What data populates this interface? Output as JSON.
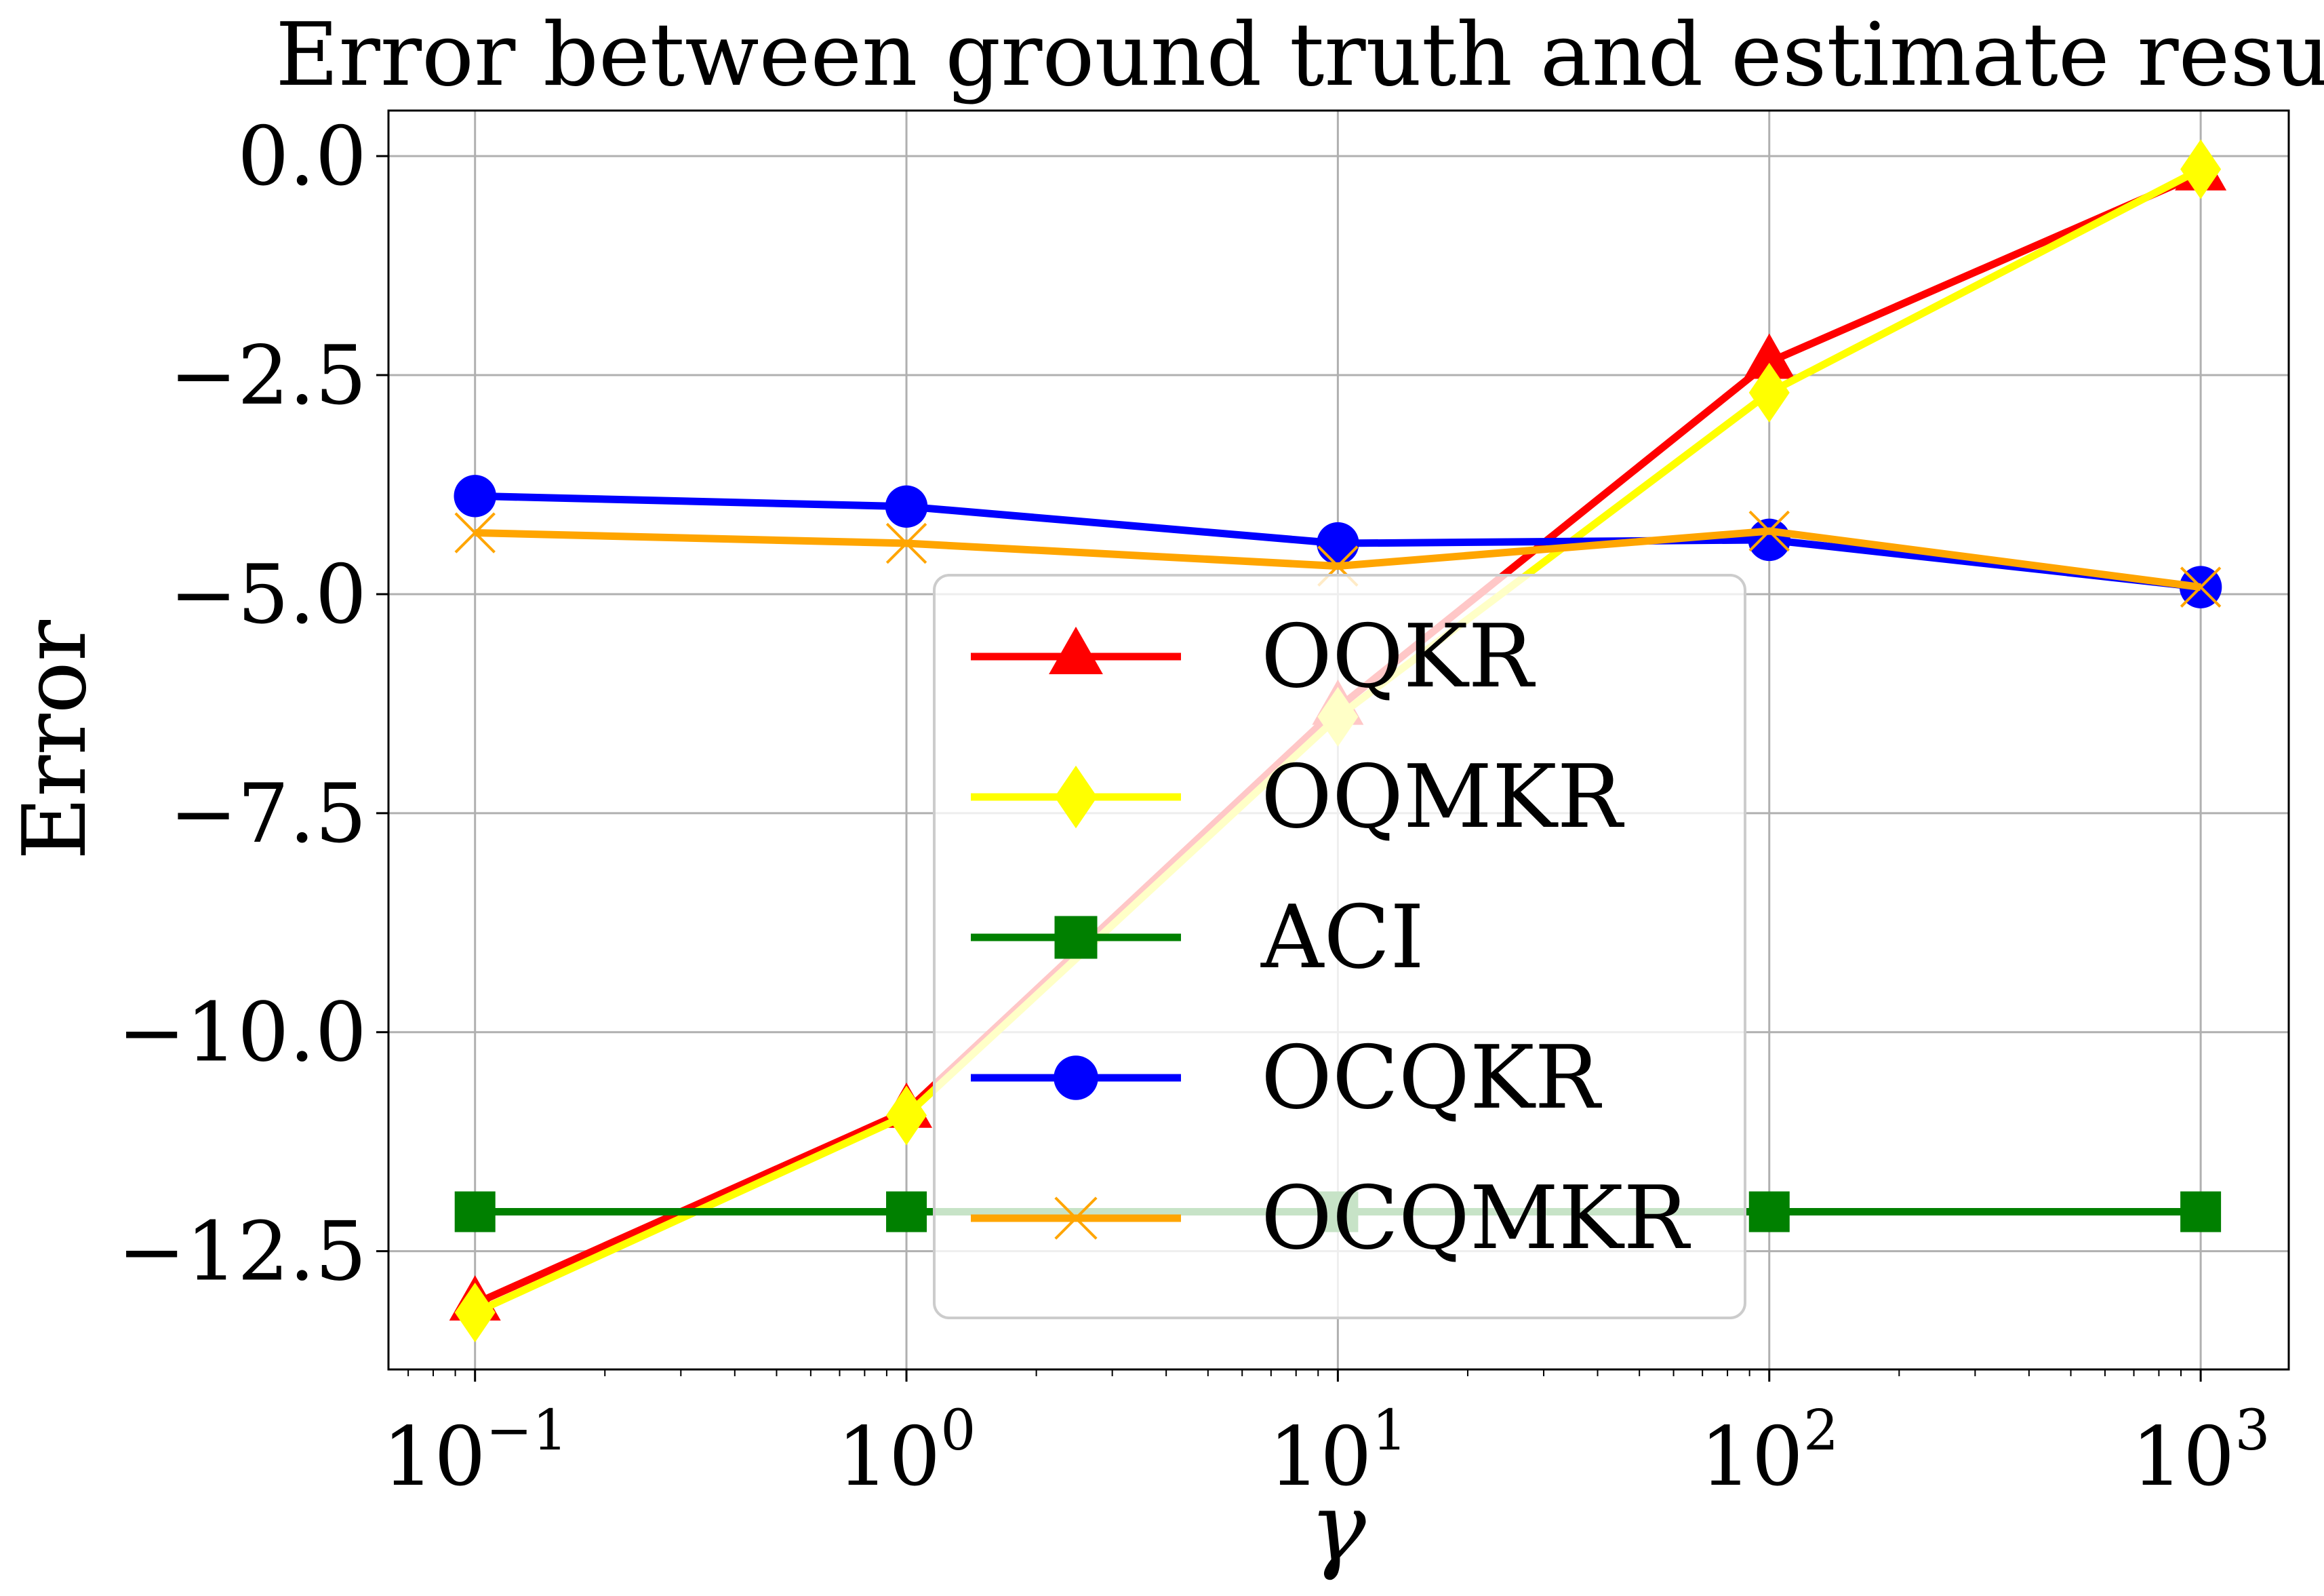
{
  "chart_data": {
    "type": "line",
    "title": "Error between ground truth and estimate result",
    "xlabel": "γ",
    "ylabel": "Error",
    "xscale": "log",
    "x": [
      0.1,
      1,
      10,
      100,
      1000
    ],
    "x_tick_labels": [
      {
        "base": "10",
        "exp": "−1"
      },
      {
        "base": "10",
        "exp": "0"
      },
      {
        "base": "10",
        "exp": "1"
      },
      {
        "base": "10",
        "exp": "2"
      },
      {
        "base": "10",
        "exp": "3"
      }
    ],
    "yticks": [
      0.0,
      -2.5,
      -5.0,
      -7.5,
      -10.0,
      -12.5
    ],
    "y_tick_labels": [
      "0.0",
      "−2.5",
      "−5.0",
      "−7.5",
      "−10.0",
      "−12.5"
    ],
    "xlim": [
      0.063,
      1600
    ],
    "ylim": [
      -13.85,
      0.52
    ],
    "grid": true,
    "legend_position": "center",
    "series": [
      {
        "name": "OQKR",
        "color": "#ff0000",
        "marker": "triangle",
        "values": [
          -13.1,
          -10.9,
          -6.3,
          -2.35,
          -0.2
        ]
      },
      {
        "name": "OQMKR",
        "color": "#ffff00",
        "marker": "diamond",
        "values": [
          -13.2,
          -10.95,
          -6.4,
          -2.7,
          -0.15
        ]
      },
      {
        "name": "ACI",
        "color": "#008000",
        "marker": "square",
        "values": [
          -12.05,
          -12.05,
          -12.05,
          -12.05,
          -12.05
        ]
      },
      {
        "name": "OCQKR",
        "color": "#0000ff",
        "marker": "circle",
        "values": [
          -3.88,
          -4.0,
          -4.42,
          -4.38,
          -4.92
        ]
      },
      {
        "name": "OCQMKR",
        "color": "#ffa500",
        "marker": "x",
        "values": [
          -4.3,
          -4.42,
          -4.68,
          -4.28,
          -4.92
        ]
      }
    ]
  }
}
